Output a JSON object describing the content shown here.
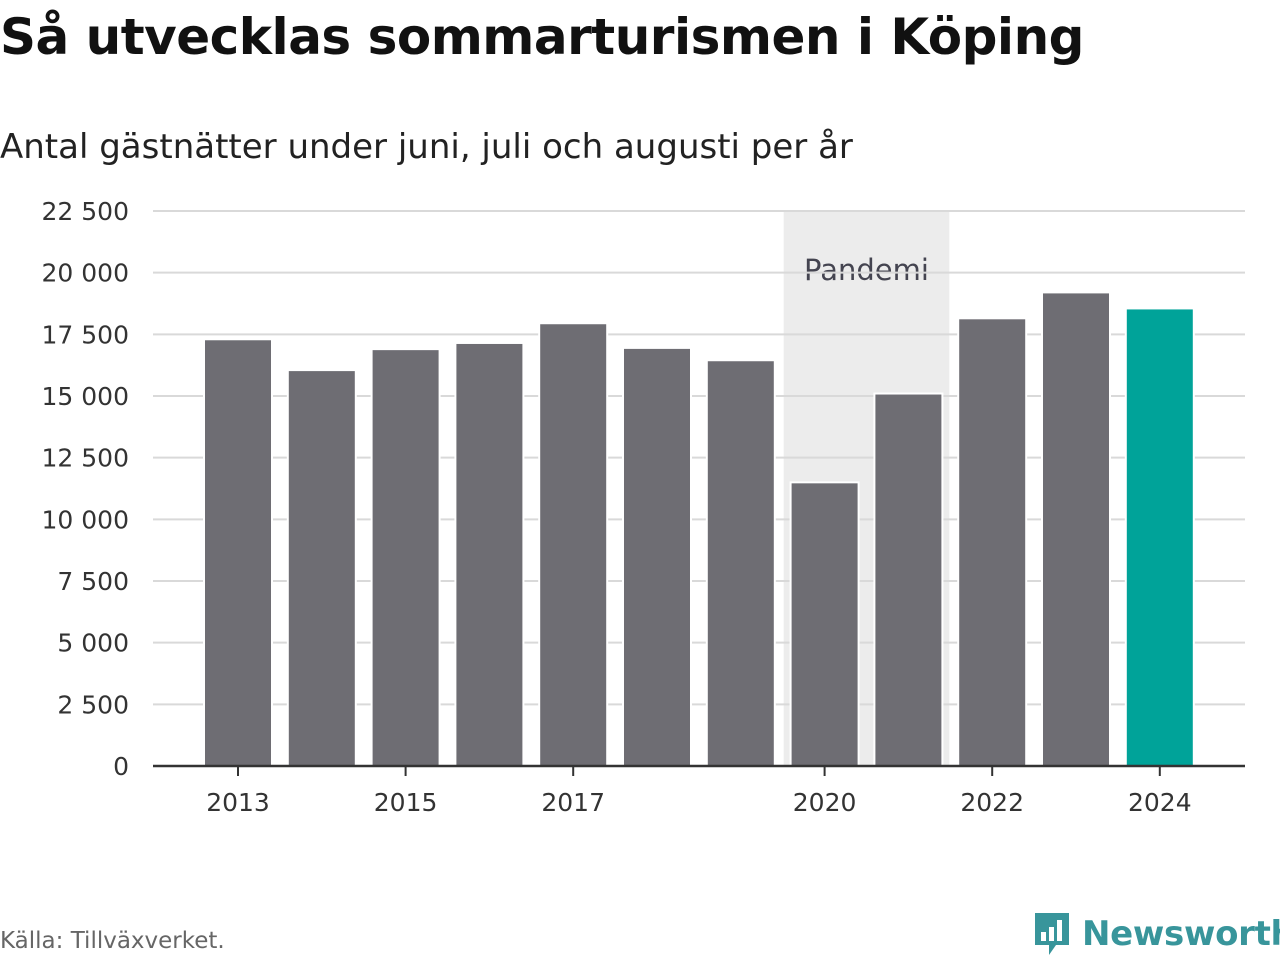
{
  "chart_data": {
    "type": "bar",
    "title": "Så utvecklas sommarturismen i Köping",
    "subtitle": "Antal gästnätter under juni, juli och augusti per år",
    "categories": [
      "2013",
      "2014",
      "2015",
      "2016",
      "2017",
      "2018",
      "2019",
      "2020",
      "2021",
      "2022",
      "2023",
      "2024"
    ],
    "values": [
      17300,
      16050,
      16900,
      17150,
      17950,
      16950,
      16450,
      11500,
      15100,
      18150,
      19200,
      18550
    ],
    "xtick_labels": [
      "2013",
      "2015",
      "2017",
      "2020",
      "2022",
      "2024"
    ],
    "ylim": [
      0,
      22500
    ],
    "yticks": [
      0,
      2500,
      5000,
      7500,
      10000,
      12500,
      15000,
      17500,
      20000,
      22500
    ],
    "ytick_labels": [
      "0",
      "2 500",
      "5 000",
      "7 500",
      "10 000",
      "12 500",
      "15 000",
      "17 500",
      "20 000",
      "22 500"
    ],
    "xlabel": "",
    "ylabel": "",
    "grid": true,
    "highlight_category": "2024",
    "bar_color": "#6e6d73",
    "highlight_color": "#00a399",
    "annotation": {
      "label": "Pandemi",
      "from": "2020",
      "to": "2021",
      "color": "#ececec"
    }
  },
  "source": "Källa: Tillväxverket.",
  "logo": {
    "text": "Newsworthy",
    "icon": "newsworthy-chart-icon",
    "color": "#38959b"
  }
}
